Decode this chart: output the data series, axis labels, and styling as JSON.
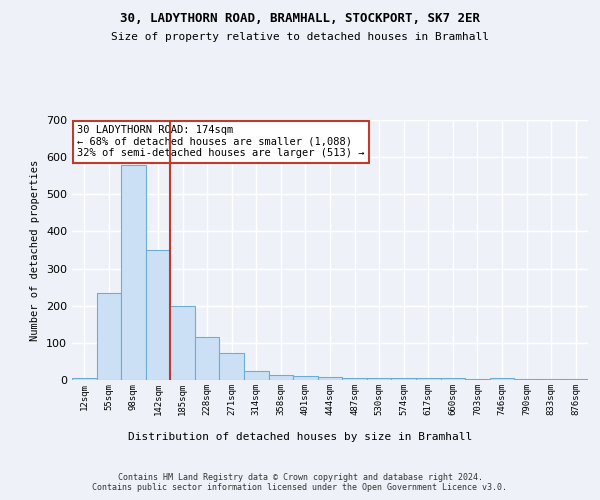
{
  "title1": "30, LADYTHORN ROAD, BRAMHALL, STOCKPORT, SK7 2ER",
  "title2": "Size of property relative to detached houses in Bramhall",
  "xlabel": "Distribution of detached houses by size in Bramhall",
  "ylabel": "Number of detached properties",
  "bin_labels": [
    "12sqm",
    "55sqm",
    "98sqm",
    "142sqm",
    "185sqm",
    "228sqm",
    "271sqm",
    "314sqm",
    "358sqm",
    "401sqm",
    "444sqm",
    "487sqm",
    "530sqm",
    "574sqm",
    "617sqm",
    "660sqm",
    "703sqm",
    "746sqm",
    "790sqm",
    "833sqm",
    "876sqm"
  ],
  "bar_heights": [
    5,
    235,
    580,
    350,
    200,
    115,
    72,
    25,
    13,
    10,
    8,
    5,
    5,
    5,
    5,
    5,
    3,
    5,
    3,
    3,
    3
  ],
  "bar_color": "#cce0f5",
  "bar_edge_color": "#6aaed6",
  "vline_color": "#c0392b",
  "annotation_text": "30 LADYTHORN ROAD: 174sqm\n← 68% of detached houses are smaller (1,088)\n32% of semi-detached houses are larger (513) →",
  "annotation_box_color": "white",
  "annotation_box_edge": "#c0392b",
  "ylim": [
    0,
    700
  ],
  "yticks": [
    0,
    100,
    200,
    300,
    400,
    500,
    600,
    700
  ],
  "footer": "Contains HM Land Registry data © Crown copyright and database right 2024.\nContains public sector information licensed under the Open Government Licence v3.0.",
  "background_color": "#eef2f8",
  "plot_bg_color": "#eef2f8"
}
